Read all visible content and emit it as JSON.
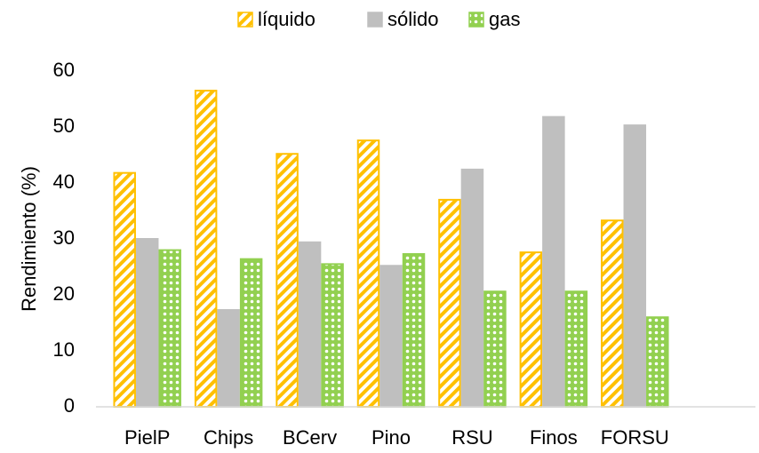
{
  "chart_data": {
    "type": "bar",
    "y_label": "Rendimiento (%)",
    "categories": [
      "PielP",
      "Chips",
      "BCerv",
      "Pino",
      "RSU",
      "Finos",
      "FORSU"
    ],
    "series": [
      {
        "name": "líquido",
        "color": "#ffc000",
        "pattern": "diagonal",
        "values": [
          41.8,
          56.5,
          45.2,
          47.6,
          37.0,
          27.6,
          33.3
        ]
      },
      {
        "name": "sólido",
        "color": "#bfbfbf",
        "pattern": "solid",
        "values": [
          30.0,
          17.3,
          29.4,
          25.2,
          42.4,
          51.8,
          50.3
        ]
      },
      {
        "name": "gas",
        "color": "#92d050",
        "pattern": "dots",
        "values": [
          28.0,
          26.4,
          25.5,
          27.3,
          20.6,
          20.6,
          16.0
        ]
      }
    ],
    "ylim": [
      0,
      60
    ],
    "yticks": [
      0,
      10,
      20,
      30,
      40,
      50,
      60
    ],
    "grid": false,
    "legend": "top"
  }
}
